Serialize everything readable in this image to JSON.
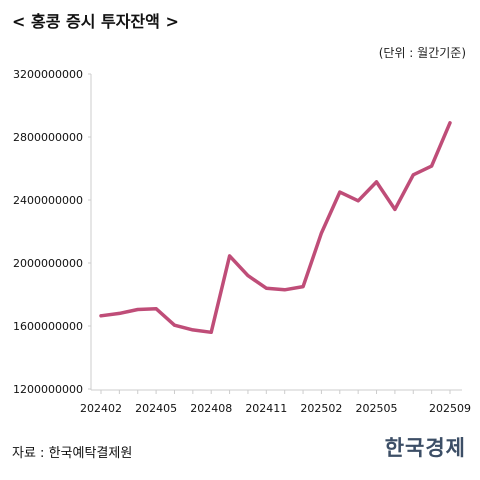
{
  "header": {
    "title": "< 홍콩 증시 투자잔액 >",
    "unit": "(단위 : 월간기준)"
  },
  "footer": {
    "source": "자료 : 한국예탁결제원",
    "logo": "한국경제"
  },
  "colors": {
    "line": "#bf4d78",
    "axis": "#cccccc"
  },
  "chart_data": {
    "type": "line",
    "title": "< 홍콩 증시 투자잔액 >",
    "subtitle": "(단위 : 월간기준)",
    "xlabel": "",
    "ylabel": "",
    "x": [
      "202402",
      "202403",
      "202404",
      "202405",
      "202406",
      "202407",
      "202408",
      "202409",
      "202410",
      "202411",
      "202412",
      "202501",
      "202502",
      "202503",
      "202504",
      "202505",
      "202506",
      "202507",
      "202508",
      "202509"
    ],
    "xtick_labels": [
      "202402",
      "202405",
      "202408",
      "202411",
      "202502",
      "202505",
      "202509"
    ],
    "ytick_labels": [
      "1200000000",
      "1600000000",
      "2000000000",
      "2400000000",
      "2800000000",
      "3200000000"
    ],
    "ylim": [
      1200000000,
      3200000000
    ],
    "grid": false,
    "series": [
      {
        "values": [
          1665000000,
          1680000000,
          1705000000,
          1710000000,
          1605000000,
          1575000000,
          1560000000,
          2045000000,
          1920000000,
          1840000000,
          1830000000,
          1850000000,
          2190000000,
          2450000000,
          2395000000,
          2515000000,
          2340000000,
          2560000000,
          2615000000,
          2890000000
        ]
      }
    ]
  }
}
